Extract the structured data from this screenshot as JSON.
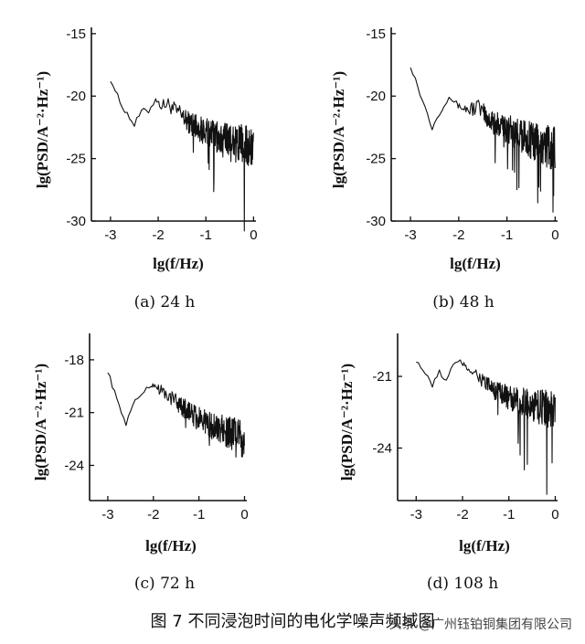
{
  "figure": {
    "caption": "图 7   不同浸泡时间的电化学噪声频域图",
    "watermark": "头条 @广州钰铂铜集团有限公司"
  },
  "chart_data": [
    {
      "type": "line",
      "panel_label": "(a)   24 h",
      "xlabel": "lg(f/Hz)",
      "ylabel": "lg(PSD/A⁻²·Hz⁻¹)",
      "xlim": [
        -3.4,
        0.05
      ],
      "ylim": [
        -30,
        -14.5
      ],
      "xticks": [
        -3,
        -2,
        -1,
        0
      ],
      "yticks": [
        -15,
        -20,
        -25,
        -30
      ],
      "series": [
        {
          "x": [
            -3.0,
            -2.8,
            -2.5,
            -2.35,
            -2.2,
            -2.05,
            -1.95,
            -1.8,
            -1.6,
            -1.4,
            -1.2,
            -1.0,
            -0.8,
            -0.6,
            -0.4,
            -0.2,
            0.0
          ],
          "y": [
            -18.6,
            -20.5,
            -22.3,
            -21.2,
            -21.2,
            -20.2,
            -20.8,
            -20.6,
            -21.3,
            -22.0,
            -22.4,
            -22.9,
            -23.2,
            -23.6,
            -23.8,
            -24.0,
            -24.2
          ]
        }
      ]
    },
    {
      "type": "line",
      "panel_label": "(b)   48 h",
      "xlabel": "lg(f/Hz)",
      "ylabel": "lg(PSD/A⁻²·Hz⁻¹)",
      "xlim": [
        -3.4,
        0.05
      ],
      "ylim": [
        -30,
        -14.5
      ],
      "xticks": [
        -3,
        -2,
        -1,
        0
      ],
      "yticks": [
        -15,
        -20,
        -25,
        -30
      ],
      "series": [
        {
          "x": [
            -3.0,
            -2.8,
            -2.55,
            -2.4,
            -2.2,
            -2.0,
            -1.8,
            -1.6,
            -1.4,
            -1.2,
            -1.0,
            -0.8,
            -0.6,
            -0.4,
            -0.2,
            0.0
          ],
          "y": [
            -17.5,
            -19.8,
            -22.5,
            -21.3,
            -20.0,
            -20.8,
            -21.1,
            -20.8,
            -21.8,
            -22.3,
            -22.6,
            -23.0,
            -23.4,
            -23.7,
            -24.0,
            -24.3
          ]
        }
      ]
    },
    {
      "type": "line",
      "panel_label": "(c)    72 h",
      "xlabel": "lg(f/Hz)",
      "ylabel": "lg(PSD/A⁻²·Hz⁻¹)",
      "xlim": [
        -3.4,
        0.05
      ],
      "ylim": [
        -26,
        -16.5
      ],
      "xticks": [
        -3,
        -2,
        -1,
        0
      ],
      "yticks": [
        -18,
        -21,
        -24
      ],
      "series": [
        {
          "x": [
            -3.0,
            -2.8,
            -2.6,
            -2.4,
            -2.2,
            -2.0,
            -1.85,
            -1.7,
            -1.5,
            -1.3,
            -1.1,
            -0.9,
            -0.7,
            -0.5,
            -0.3,
            -0.1,
            0.0
          ],
          "y": [
            -18.6,
            -20.3,
            -21.6,
            -20.3,
            -19.8,
            -19.4,
            -19.7,
            -20.0,
            -20.4,
            -20.8,
            -21.2,
            -21.5,
            -21.8,
            -22.0,
            -22.2,
            -22.4,
            -22.5
          ]
        }
      ]
    },
    {
      "type": "line",
      "panel_label": "(d)    108 h",
      "xlabel": "lg(f/Hz)",
      "ylabel": "lg(PSD/A⁻²·Hz⁻¹)",
      "xlim": [
        -3.4,
        0.05
      ],
      "ylim": [
        -26.2,
        -19.2
      ],
      "xticks": [
        -3,
        -2,
        -1,
        0
      ],
      "yticks": [
        -21,
        -24
      ],
      "series": [
        {
          "x": [
            -3.0,
            -2.8,
            -2.65,
            -2.5,
            -2.35,
            -2.2,
            -2.05,
            -1.9,
            -1.7,
            -1.5,
            -1.3,
            -1.1,
            -0.9,
            -0.7,
            -0.5,
            -0.3,
            -0.1,
            0.0
          ],
          "y": [
            -20.3,
            -20.9,
            -21.4,
            -20.8,
            -21.2,
            -20.5,
            -20.4,
            -20.6,
            -20.9,
            -21.3,
            -21.6,
            -21.8,
            -22.0,
            -22.1,
            -22.2,
            -22.3,
            -22.4,
            -22.4
          ]
        }
      ]
    }
  ]
}
